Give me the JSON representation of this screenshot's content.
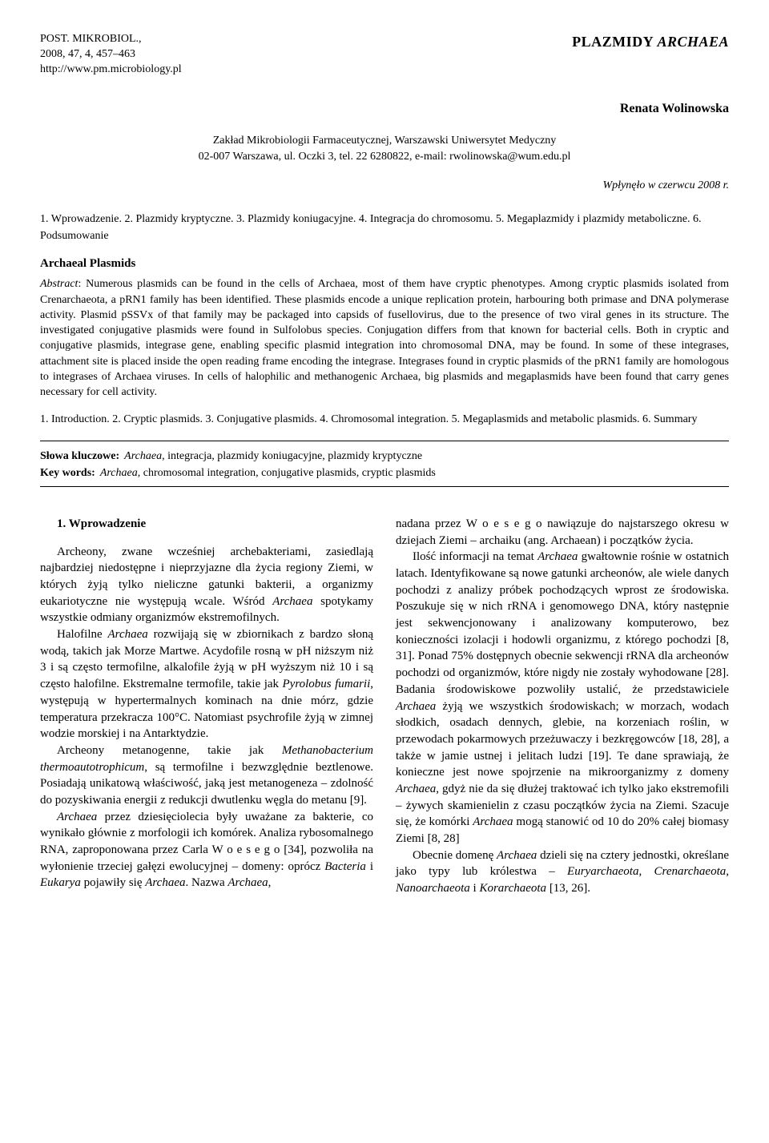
{
  "journal": {
    "line1": "POST. MIKROBIOL.,",
    "line2": "2008, 47, 4, 457–463",
    "line3": "http://www.pm.microbiology.pl"
  },
  "title_plain": "PLAZMIDY",
  "title_ital": "ARCHAEA",
  "author": "Renata Wolinowska",
  "affiliation_line1": "Zakład Mikrobiologii Farmaceutycznej, Warszawski Uniwersytet Medyczny",
  "affiliation_line2": "02-007 Warszawa, ul. Oczki 3, tel. 22 6280822, e-mail: rwolinowska@wum.edu.pl",
  "received": "Wpłynęło w czerwcu 2008 r.",
  "outline_pl": "1. Wprowadzenie. 2. Plazmidy kryptyczne. 3. Plazmidy koniugacyjne. 4. Integracja do chromosomu. 5. Megaplazmidy i plazmidy metaboliczne. 6. Podsumowanie",
  "abstract_title": "Archaeal Plasmids",
  "abstract_lead": "Abstract",
  "abstract_body": ": Numerous plasmids can be found in the cells of Archaea, most of them have cryptic phenotypes. Among cryptic plasmids isolated from Crenarchaeota, a pRN1 family has been identified. These plasmids encode a unique replication protein, harbouring both primase and DNA polymerase activity. Plasmid pSSVx of that family may be packaged into capsids of fusellovirus, due to the presence of two viral genes in its structure. The investigated conjugative plasmids were found in Sulfolobus species. Conjugation differs from that known for bacterial cells. Both in cryptic and conjugative plasmids, integrase gene, enabling specific plasmid integration into chromosomal DNA, may be found. In some of these integrases, attachment site is placed inside the open reading frame encoding the integrase. Integrases found in cryptic plasmids of the pRN1 family are homologous to integrases of Archaea viruses. In cells of halophilic and methanogenic Archaea, big plasmids and megaplasmids have been found that carry genes necessary for cell activity.",
  "outline_en": "1. Introduction. 2. Cryptic plasmids. 3. Conjugative plasmids. 4. Chromosomal integration. 5. Megaplasmids and metabolic plasmids. 6. Summary",
  "kw_pl_label": "Słowa kluczowe:",
  "kw_pl_value_ital": "Archaea",
  "kw_pl_value_rest": ", integracja, plazmidy koniugacyjne, plazmidy kryptyczne",
  "kw_en_label": "Key words:",
  "kw_en_value_ital": "Archaea",
  "kw_en_value_rest": ", chromosomal integration, conjugative plasmids, cryptic plasmids",
  "section_heading": "1. Wprowadzenie",
  "left": {
    "p1a": "Archeony, zwane wcześniej archebakteriami, zasiedlają najbardziej niedostępne i nieprzyjazne dla życia regiony Ziemi, w których żyją tylko nieliczne gatunki bakterii, a organizmy eukariotyczne nie występują wcale. Wśród ",
    "p1b": "Archaea",
    "p1c": " spotykamy wszystkie odmiany organizmów ekstremofilnych.",
    "p2a": "Halofilne ",
    "p2b": "Archaea",
    "p2c": " rozwijają się w zbiornikach z bardzo słoną wodą, takich jak Morze Martwe. Acydofile rosną w pH niższym niż 3 i są często termofilne, alkalofile żyją w pH wyższym niż 10 i są często halofilne. Ekstremalne termofile, takie jak ",
    "p2d": "Pyrolobus fumarii",
    "p2e": ", występują w hypertermalnych kominach na dnie mórz, gdzie temperatura przekracza 100°C. Natomiast psychrofile żyją w zimnej wodzie morskiej i na Antarktydzie.",
    "p3a": "Archeony metanogenne, takie jak ",
    "p3b": "Methanobacterium thermoautotrophicum",
    "p3c": ", są termofilne i bezwzględnie beztlenowe. Posiadają unikatową właściwość, jaką jest metanogeneza – zdolność do pozyskiwania energii z redukcji dwutlenku węgla do metanu [9].",
    "p4a": "Archaea",
    "p4b": " przez dziesięciolecia były uważane za bakterie, co wynikało głównie z morfologii ich komórek. Analiza rybosomalnego RNA, zaproponowana przez Carla W o e s e g o [34], pozwoliła na wyłonienie trzeciej gałęzi ewolucyjnej – domeny: oprócz ",
    "p4c": "Bacteria",
    "p4d": " i ",
    "p4e": "Eukarya",
    "p4f": " pojawiły się ",
    "p4g": "Archaea",
    "p4h": ". Nazwa ",
    "p4i": "Archaea",
    "p4j": ","
  },
  "right": {
    "p1": "nadana przez W o e s e g o nawiązuje do najstarszego okresu w dziejach Ziemi – archaiku (ang. Archaean) i początków życia.",
    "p2a": "Ilość informacji na temat ",
    "p2b": "Archaea",
    "p2c": " gwałtownie rośnie w ostatnich latach. Identyfikowane są nowe gatunki archeonów, ale wiele danych pochodzi z analizy próbek pochodzących wprost ze środowiska. Poszukuje się w nich rRNA i genomowego DNA, który następnie jest sekwencjonowany i analizowany komputerowo, bez konieczności izolacji i hodowli organizmu, z którego pochodzi [8, 31]. Ponad 75% dostępnych obecnie sekwencji rRNA dla archeonów pochodzi od organizmów, które nigdy nie zostały wyhodowane [28]. Badania środowiskowe pozwoliły ustalić, że przedstawiciele ",
    "p2d": "Archaea",
    "p2e": " żyją we wszystkich środowiskach; w morzach, wodach słodkich, osadach dennych, glebie, na korzeniach roślin, w przewodach pokarmowych przeżuwaczy i bezkręgowców [18, 28], a także w jamie ustnej i jelitach ludzi [19]. Te dane sprawiają, że konieczne jest nowe spojrzenie na mikroorganizmy z domeny ",
    "p2f": "Archaea",
    "p2g": ", gdyż nie da się dłużej traktować ich tylko jako ekstremofili – żywych skamienielin z czasu początków życia na Ziemi. Szacuje się, że komórki ",
    "p2h": "Archaea",
    "p2i": " mogą stanowić od 10 do 20% całej biomasy Ziemi [8, 28]",
    "p3a": "Obecnie domenę ",
    "p3b": "Archaea",
    "p3c": " dzieli się na cztery jednostki, określane jako typy lub królestwa – ",
    "p3d": "Euryarchaeota",
    "p3e": ", ",
    "p3f": "Crenarchaeota",
    "p3g": ", ",
    "p3h": "Nanoarchaeota",
    "p3i": " i ",
    "p3j": "Korarchaeota",
    "p3k": " [13, 26]."
  }
}
